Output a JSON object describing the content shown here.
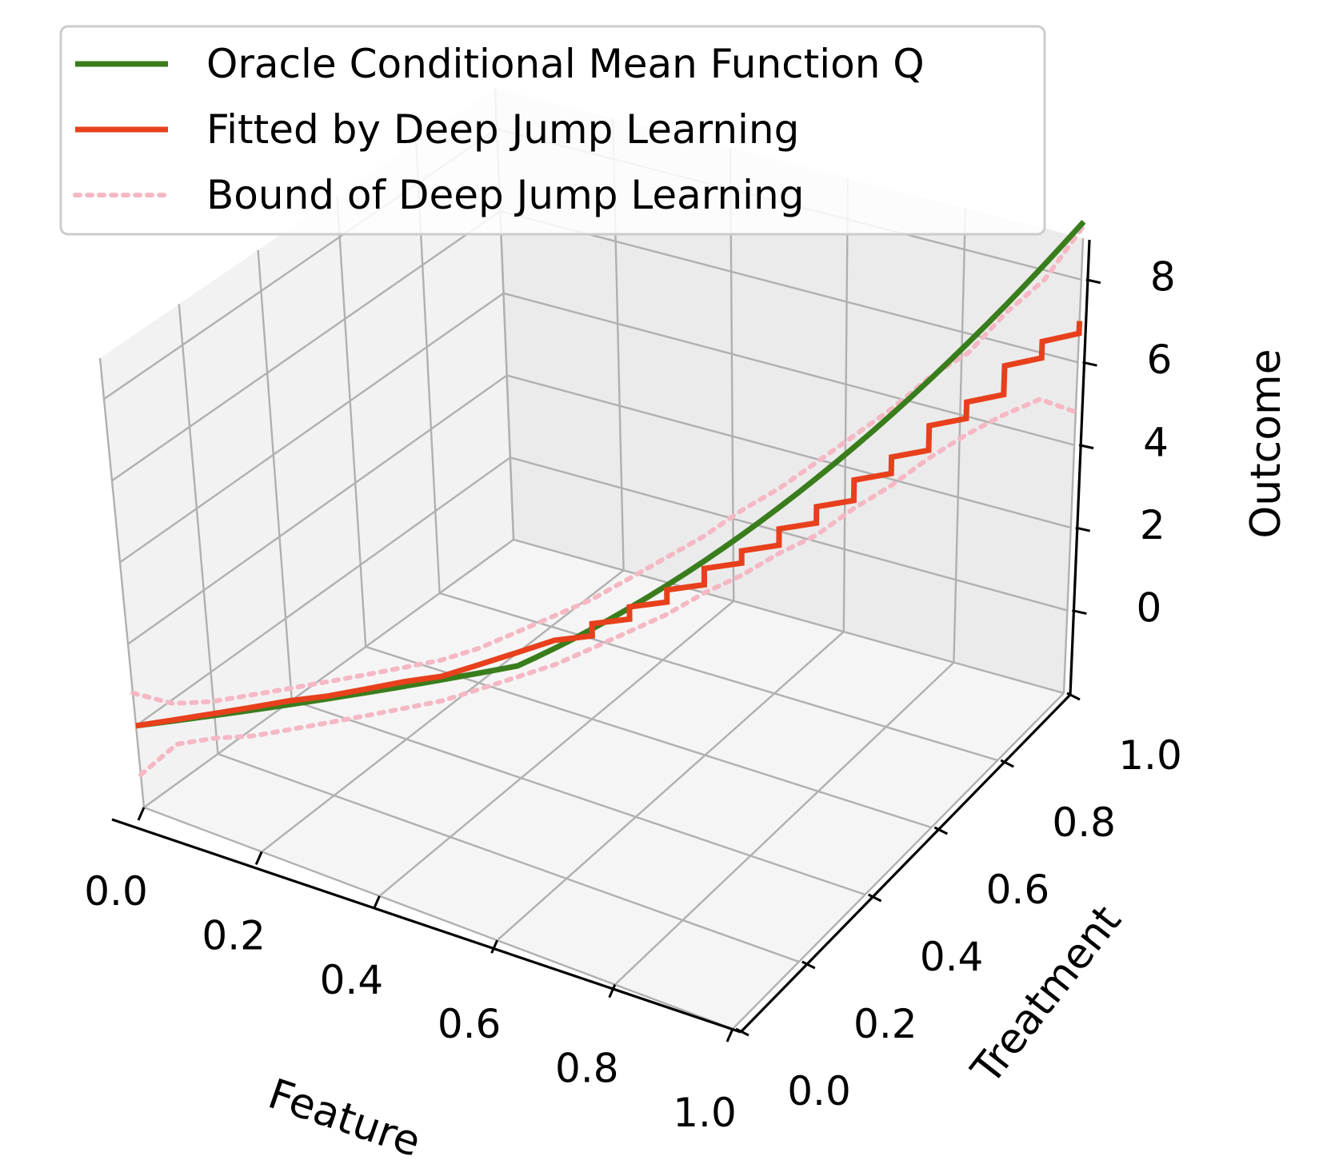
{
  "chart_data": {
    "type": "line",
    "projection": "3d",
    "title": "",
    "xlabel": "Feature",
    "ylabel": "Treatment",
    "zlabel": "Outcome",
    "xlim": [
      0,
      1
    ],
    "ylim": [
      0,
      1
    ],
    "zlim": [
      -2,
      9
    ],
    "xticks": [
      "0.0",
      "0.2",
      "0.4",
      "0.6",
      "0.8",
      "1.0"
    ],
    "yticks": [
      "0.0",
      "0.2",
      "0.4",
      "0.6",
      "0.8",
      "1.0"
    ],
    "zticks": [
      "0",
      "2",
      "4",
      "6",
      "8"
    ],
    "grid": true,
    "legend": "upper-left",
    "series": [
      {
        "name": "Oracle Conditional Mean Function Q",
        "color": "#3a7d1c",
        "style": "solid",
        "x": [
          0.0,
          1.0
        ],
        "y": [
          0.0,
          1.0
        ],
        "z": [
          0.0,
          9.4
        ],
        "oracle": true
      },
      {
        "name": "Fitted by Deep Jump Learning",
        "color": "#e8401c",
        "style": "solid",
        "x": [
          0,
          0.04,
          0.08,
          0.12,
          0.16,
          0.2,
          0.24,
          0.28,
          0.32,
          0.36,
          0.4,
          0.44,
          0.48,
          0.52,
          0.56,
          0.6,
          0.64,
          0.68,
          0.72,
          0.76,
          0.8,
          0.84,
          0.88,
          0.92,
          0.96,
          1.0
        ],
        "y": [
          0,
          0.04,
          0.08,
          0.12,
          0.16,
          0.2,
          0.24,
          0.28,
          0.32,
          0.36,
          0.4,
          0.44,
          0.48,
          0.52,
          0.56,
          0.6,
          0.64,
          0.68,
          0.72,
          0.76,
          0.8,
          0.84,
          0.88,
          0.92,
          0.96,
          1.0
        ],
        "z": [
          0.0,
          0.1,
          0.2,
          0.3,
          0.4,
          0.45,
          0.55,
          0.65,
          0.7,
          0.9,
          1.1,
          1.3,
          1.6,
          1.9,
          2.2,
          2.6,
          2.9,
          3.3,
          3.7,
          4.2,
          4.6,
          5.2,
          5.6,
          6.3,
          6.7,
          7.0
        ],
        "stepped": true
      },
      {
        "name": "Bound of Deep Jump Learning",
        "color": "#f5b8c4",
        "style": "dotted",
        "upper": [
          0.8,
          0.5,
          0.5,
          0.6,
          0.7,
          0.8,
          0.9,
          1.0,
          1.1,
          1.3,
          1.6,
          1.9,
          2.2,
          2.6,
          3.0,
          3.4,
          3.9,
          4.3,
          4.8,
          5.3,
          5.8,
          6.4,
          6.8,
          7.6,
          8.2,
          9.3
        ],
        "lower": [
          -1.2,
          -0.5,
          -0.4,
          -0.4,
          -0.3,
          -0.2,
          -0.1,
          0.0,
          0.1,
          0.3,
          0.5,
          0.7,
          1.0,
          1.3,
          1.6,
          2.0,
          2.3,
          2.7,
          3.0,
          3.5,
          3.9,
          4.4,
          4.8,
          5.1,
          5.3,
          4.8
        ]
      }
    ]
  }
}
